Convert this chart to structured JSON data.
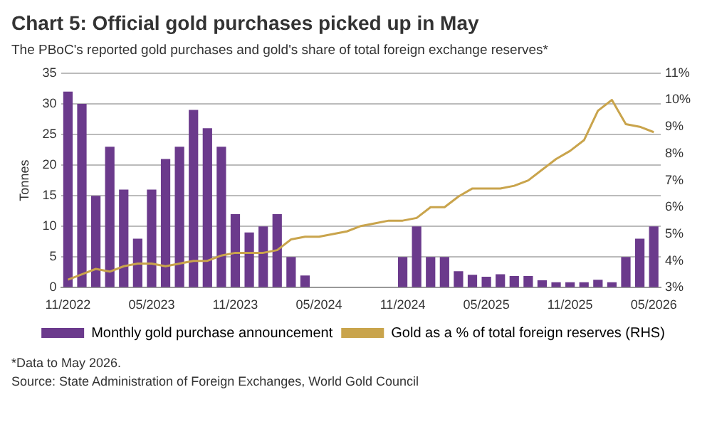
{
  "chart_data": {
    "type": "bar",
    "title": "Chart 5: Official gold purchases picked up in May",
    "subtitle": "The PBoC's reported gold purchases and gold's share of total foreign exchange reserves*",
    "ylabel": "Tonnes",
    "categories": [
      "11/2022",
      null,
      null,
      null,
      null,
      null,
      "05/2023",
      null,
      null,
      null,
      null,
      null,
      "11/2023",
      null,
      null,
      null,
      null,
      null,
      "05/2024",
      null,
      null,
      null,
      null,
      null,
      "11/2024",
      null,
      null,
      null,
      null,
      null,
      "05/2025",
      null,
      null,
      null,
      null,
      null,
      "11/2025",
      null,
      null,
      null,
      null,
      null,
      "05/2026"
    ],
    "series": [
      {
        "name": "Monthly gold purchase announcement",
        "color": "#6b3a8c",
        "values": [
          32,
          30,
          15,
          23,
          16,
          8,
          16,
          21,
          23,
          29,
          26,
          23,
          12,
          9,
          10,
          12,
          5,
          2,
          0,
          0,
          0,
          0,
          0,
          0,
          5,
          10,
          5,
          5,
          2.7,
          2.1,
          1.8,
          2.2,
          1.9,
          1.9,
          1.2,
          0.9,
          0.9,
          0.9,
          1.3,
          0.9,
          5,
          8,
          10
        ]
      },
      {
        "name": "Gold as a % of total foreign reserves (RHS)",
        "type": "line",
        "axis": "y2",
        "color": "#c9a44c",
        "values": [
          3.3,
          3.5,
          3.7,
          3.6,
          3.8,
          3.9,
          3.9,
          3.8,
          3.9,
          4.0,
          4.0,
          4.2,
          4.3,
          4.3,
          4.3,
          4.4,
          4.8,
          4.9,
          4.9,
          5.0,
          5.1,
          5.3,
          5.4,
          5.5,
          5.5,
          5.6,
          6.0,
          6.0,
          6.4,
          6.7,
          6.7,
          6.7,
          6.8,
          7.0,
          7.4,
          7.8,
          8.1,
          8.5,
          9.6,
          10.0,
          9.1,
          9.0,
          8.8
        ]
      }
    ],
    "ylim": [
      0,
      35
    ],
    "yticks": [
      0,
      5,
      10,
      15,
      20,
      25,
      30,
      35
    ],
    "y2lim": [
      3,
      11
    ],
    "y2ticks": [
      {
        "value": 3,
        "label": "3%"
      },
      {
        "value": 4,
        "label": "4%"
      },
      {
        "value": 5,
        "label": "5%"
      },
      {
        "value": 6,
        "label": "6%"
      },
      {
        "value": 7,
        "label": "7%"
      },
      {
        "value": 8,
        "label": "8%"
      },
      {
        "value": 9,
        "label": "9%"
      },
      {
        "value": 10,
        "label": "10%"
      },
      {
        "value": 11,
        "label": "11%"
      }
    ],
    "grid": "y",
    "legend": "bottom",
    "marker": "none",
    "annotations": [
      "*Data to May 2026.",
      "Source: State Administration of Foreign Exchanges, World Gold Council"
    ]
  }
}
